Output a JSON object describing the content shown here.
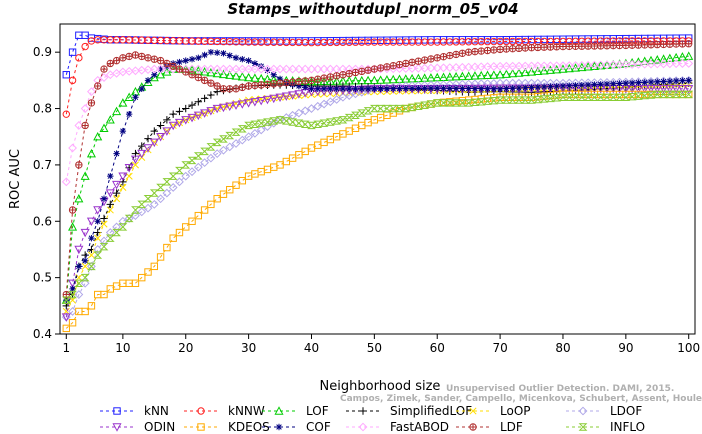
{
  "chart_data": {
    "type": "line",
    "title": "Stamps_withoutdupl_norm_05_v04",
    "xlabel": "Neighborhood size",
    "ylabel": "ROC AUC",
    "xlim": [
      0,
      101
    ],
    "ylim": [
      0.4,
      0.95
    ],
    "xticks": [
      1,
      10,
      20,
      30,
      40,
      50,
      60,
      70,
      80,
      90,
      100
    ],
    "yticks": [
      0.4,
      0.5,
      0.6,
      0.7,
      0.8,
      0.9
    ],
    "ytick_labels": [
      "0.4",
      "0.5",
      "0.6",
      "0.7",
      "0.8",
      "0.9"
    ],
    "grid": false,
    "legend_position": "bottom",
    "watermark_lines": [
      "Unsupervised Outlier Detection. DAMI, 2015.",
      "Campos, Zimek, Sander, Campello, Micenkova, Schubert, Assent, Houle"
    ],
    "series": [
      {
        "name": "kNN",
        "color": "#2020ff",
        "marker": "square",
        "points": [
          [
            1,
            0.86
          ],
          [
            2,
            0.9
          ],
          [
            3,
            0.93
          ],
          [
            4,
            0.93
          ],
          [
            5,
            0.925
          ],
          [
            6,
            0.924
          ],
          [
            8,
            0.922
          ],
          [
            10,
            0.922
          ],
          [
            15,
            0.921
          ],
          [
            20,
            0.92
          ],
          [
            30,
            0.92
          ],
          [
            40,
            0.92
          ],
          [
            50,
            0.921
          ],
          [
            60,
            0.922
          ],
          [
            70,
            0.922
          ],
          [
            80,
            0.923
          ],
          [
            90,
            0.924
          ],
          [
            100,
            0.925
          ]
        ]
      },
      {
        "name": "kNNW",
        "color": "#ff2020",
        "marker": "circle",
        "points": [
          [
            1,
            0.79
          ],
          [
            2,
            0.85
          ],
          [
            3,
            0.89
          ],
          [
            4,
            0.91
          ],
          [
            5,
            0.92
          ],
          [
            6,
            0.922
          ],
          [
            8,
            0.922
          ],
          [
            10,
            0.922
          ],
          [
            20,
            0.92
          ],
          [
            30,
            0.918
          ],
          [
            40,
            0.917
          ],
          [
            50,
            0.918
          ],
          [
            60,
            0.918
          ],
          [
            70,
            0.919
          ],
          [
            80,
            0.919
          ],
          [
            90,
            0.92
          ],
          [
            100,
            0.92
          ]
        ]
      },
      {
        "name": "LOF",
        "color": "#00cc00",
        "marker": "triangle-up",
        "points": [
          [
            1,
            0.46
          ],
          [
            2,
            0.59
          ],
          [
            3,
            0.64
          ],
          [
            4,
            0.68
          ],
          [
            5,
            0.72
          ],
          [
            6,
            0.75
          ],
          [
            8,
            0.78
          ],
          [
            10,
            0.81
          ],
          [
            12,
            0.83
          ],
          [
            15,
            0.855
          ],
          [
            18,
            0.87
          ],
          [
            20,
            0.87
          ],
          [
            25,
            0.862
          ],
          [
            30,
            0.855
          ],
          [
            35,
            0.85
          ],
          [
            40,
            0.848
          ],
          [
            50,
            0.85
          ],
          [
            60,
            0.855
          ],
          [
            70,
            0.86
          ],
          [
            80,
            0.87
          ],
          [
            90,
            0.88
          ],
          [
            100,
            0.893
          ]
        ]
      },
      {
        "name": "SimplifiedLOF",
        "color": "#000000",
        "marker": "plus",
        "points": [
          [
            1,
            0.45
          ],
          [
            2,
            0.47
          ],
          [
            3,
            0.52
          ],
          [
            4,
            0.54
          ],
          [
            5,
            0.55
          ],
          [
            6,
            0.58
          ],
          [
            8,
            0.63
          ],
          [
            10,
            0.67
          ],
          [
            12,
            0.72
          ],
          [
            15,
            0.76
          ],
          [
            18,
            0.79
          ],
          [
            20,
            0.8
          ],
          [
            25,
            0.83
          ],
          [
            30,
            0.84
          ],
          [
            35,
            0.842
          ],
          [
            40,
            0.84
          ],
          [
            45,
            0.84
          ],
          [
            50,
            0.838
          ],
          [
            55,
            0.835
          ],
          [
            60,
            0.832
          ],
          [
            65,
            0.829
          ],
          [
            70,
            0.83
          ],
          [
            75,
            0.829
          ],
          [
            80,
            0.831
          ],
          [
            85,
            0.834
          ],
          [
            90,
            0.838
          ],
          [
            95,
            0.842
          ],
          [
            100,
            0.845
          ]
        ]
      },
      {
        "name": "LoOP",
        "color": "#ffdd00",
        "marker": "x",
        "points": [
          [
            1,
            0.44
          ],
          [
            2,
            0.46
          ],
          [
            3,
            0.5
          ],
          [
            4,
            0.52
          ],
          [
            5,
            0.54
          ],
          [
            6,
            0.57
          ],
          [
            8,
            0.62
          ],
          [
            10,
            0.66
          ],
          [
            12,
            0.7
          ],
          [
            15,
            0.74
          ],
          [
            18,
            0.77
          ],
          [
            20,
            0.78
          ],
          [
            25,
            0.8
          ],
          [
            30,
            0.815
          ],
          [
            40,
            0.825
          ],
          [
            50,
            0.83
          ],
          [
            60,
            0.832
          ],
          [
            70,
            0.835
          ],
          [
            80,
            0.837
          ],
          [
            90,
            0.84
          ],
          [
            100,
            0.842
          ]
        ]
      },
      {
        "name": "LDOF",
        "color": "#b0a8e8",
        "marker": "diamond",
        "points": [
          [
            1,
            0.43
          ],
          [
            2,
            0.44
          ],
          [
            3,
            0.47
          ],
          [
            4,
            0.49
          ],
          [
            5,
            0.52
          ],
          [
            6,
            0.55
          ],
          [
            8,
            0.58
          ],
          [
            10,
            0.6
          ],
          [
            12,
            0.61
          ],
          [
            15,
            0.63
          ],
          [
            18,
            0.66
          ],
          [
            20,
            0.68
          ],
          [
            25,
            0.72
          ],
          [
            30,
            0.75
          ],
          [
            35,
            0.78
          ],
          [
            40,
            0.8
          ],
          [
            45,
            0.82
          ],
          [
            50,
            0.835
          ],
          [
            55,
            0.84
          ],
          [
            60,
            0.842
          ],
          [
            70,
            0.845
          ],
          [
            80,
            0.845
          ],
          [
            90,
            0.847
          ],
          [
            100,
            0.85
          ]
        ]
      },
      {
        "name": "ODIN",
        "color": "#9933cc",
        "marker": "triangle-down",
        "points": [
          [
            1,
            0.43
          ],
          [
            2,
            0.49
          ],
          [
            3,
            0.55
          ],
          [
            4,
            0.58
          ],
          [
            5,
            0.6
          ],
          [
            6,
            0.62
          ],
          [
            8,
            0.65
          ],
          [
            10,
            0.68
          ],
          [
            12,
            0.71
          ],
          [
            15,
            0.74
          ],
          [
            18,
            0.77
          ],
          [
            20,
            0.78
          ],
          [
            25,
            0.8
          ],
          [
            30,
            0.81
          ],
          [
            35,
            0.82
          ],
          [
            40,
            0.83
          ],
          [
            50,
            0.835
          ],
          [
            60,
            0.835
          ],
          [
            70,
            0.836
          ],
          [
            80,
            0.836
          ],
          [
            90,
            0.835
          ],
          [
            100,
            0.835
          ]
        ]
      },
      {
        "name": "KDEOS",
        "color": "#ffaa00",
        "marker": "square",
        "points": [
          [
            1,
            0.41
          ],
          [
            2,
            0.42
          ],
          [
            3,
            0.44
          ],
          [
            4,
            0.44
          ],
          [
            5,
            0.45
          ],
          [
            6,
            0.47
          ],
          [
            7,
            0.47
          ],
          [
            8,
            0.48
          ],
          [
            10,
            0.49
          ],
          [
            12,
            0.49
          ],
          [
            13,
            0.5
          ],
          [
            15,
            0.52
          ],
          [
            18,
            0.57
          ],
          [
            20,
            0.59
          ],
          [
            25,
            0.64
          ],
          [
            30,
            0.68
          ],
          [
            35,
            0.7
          ],
          [
            40,
            0.73
          ],
          [
            45,
            0.755
          ],
          [
            50,
            0.78
          ],
          [
            55,
            0.8
          ],
          [
            60,
            0.81
          ],
          [
            65,
            0.815
          ],
          [
            70,
            0.82
          ],
          [
            75,
            0.82
          ],
          [
            80,
            0.825
          ],
          [
            85,
            0.825
          ],
          [
            90,
            0.825
          ],
          [
            95,
            0.825
          ],
          [
            100,
            0.825
          ]
        ]
      },
      {
        "name": "COF",
        "color": "#000080",
        "marker": "asterisk",
        "points": [
          [
            1,
            0.46
          ],
          [
            2,
            0.48
          ],
          [
            3,
            0.52
          ],
          [
            4,
            0.53
          ],
          [
            5,
            0.57
          ],
          [
            6,
            0.6
          ],
          [
            8,
            0.68
          ],
          [
            10,
            0.76
          ],
          [
            12,
            0.82
          ],
          [
            14,
            0.85
          ],
          [
            16,
            0.87
          ],
          [
            18,
            0.88
          ],
          [
            20,
            0.885
          ],
          [
            22,
            0.89
          ],
          [
            24,
            0.9
          ],
          [
            26,
            0.898
          ],
          [
            28,
            0.89
          ],
          [
            30,
            0.885
          ],
          [
            32,
            0.875
          ],
          [
            34,
            0.86
          ],
          [
            36,
            0.845
          ],
          [
            38,
            0.84
          ],
          [
            40,
            0.835
          ],
          [
            45,
            0.835
          ],
          [
            50,
            0.835
          ],
          [
            60,
            0.836
          ],
          [
            70,
            0.835
          ],
          [
            80,
            0.84
          ],
          [
            90,
            0.845
          ],
          [
            100,
            0.85
          ]
        ]
      },
      {
        "name": "FastABOD",
        "color": "#ffaaff",
        "marker": "diamond",
        "points": [
          [
            1,
            0.67
          ],
          [
            2,
            0.73
          ],
          [
            3,
            0.77
          ],
          [
            4,
            0.8
          ],
          [
            5,
            0.83
          ],
          [
            6,
            0.85
          ],
          [
            8,
            0.86
          ],
          [
            10,
            0.865
          ],
          [
            15,
            0.87
          ],
          [
            20,
            0.87
          ],
          [
            30,
            0.87
          ],
          [
            40,
            0.87
          ],
          [
            50,
            0.87
          ],
          [
            60,
            0.872
          ],
          [
            70,
            0.875
          ],
          [
            80,
            0.876
          ],
          [
            90,
            0.878
          ],
          [
            100,
            0.88
          ]
        ]
      },
      {
        "name": "LDF",
        "color": "#b03030",
        "marker": "circle-plus",
        "points": [
          [
            1,
            0.47
          ],
          [
            2,
            0.62
          ],
          [
            3,
            0.7
          ],
          [
            4,
            0.77
          ],
          [
            5,
            0.81
          ],
          [
            6,
            0.84
          ],
          [
            7,
            0.87
          ],
          [
            8,
            0.88
          ],
          [
            10,
            0.89
          ],
          [
            12,
            0.895
          ],
          [
            14,
            0.89
          ],
          [
            16,
            0.885
          ],
          [
            18,
            0.875
          ],
          [
            20,
            0.865
          ],
          [
            22,
            0.855
          ],
          [
            24,
            0.845
          ],
          [
            26,
            0.835
          ],
          [
            28,
            0.835
          ],
          [
            30,
            0.84
          ],
          [
            35,
            0.845
          ],
          [
            40,
            0.85
          ],
          [
            45,
            0.86
          ],
          [
            50,
            0.87
          ],
          [
            55,
            0.88
          ],
          [
            60,
            0.89
          ],
          [
            65,
            0.9
          ],
          [
            70,
            0.905
          ],
          [
            75,
            0.908
          ],
          [
            80,
            0.91
          ],
          [
            90,
            0.912
          ],
          [
            100,
            0.915
          ]
        ]
      },
      {
        "name": "INFLO",
        "color": "#88cc33",
        "marker": "hourglass",
        "points": [
          [
            1,
            0.46
          ],
          [
            2,
            0.47
          ],
          [
            3,
            0.49
          ],
          [
            4,
            0.5
          ],
          [
            5,
            0.52
          ],
          [
            6,
            0.54
          ],
          [
            8,
            0.57
          ],
          [
            10,
            0.59
          ],
          [
            12,
            0.62
          ],
          [
            15,
            0.65
          ],
          [
            18,
            0.68
          ],
          [
            20,
            0.7
          ],
          [
            25,
            0.74
          ],
          [
            30,
            0.77
          ],
          [
            35,
            0.78
          ],
          [
            40,
            0.77
          ],
          [
            45,
            0.78
          ],
          [
            50,
            0.8
          ],
          [
            55,
            0.8
          ],
          [
            60,
            0.81
          ],
          [
            65,
            0.81
          ],
          [
            70,
            0.815
          ],
          [
            75,
            0.815
          ],
          [
            80,
            0.82
          ],
          [
            85,
            0.82
          ],
          [
            90,
            0.82
          ],
          [
            95,
            0.825
          ],
          [
            100,
            0.825
          ]
        ]
      }
    ],
    "legend_layout": [
      [
        "kNN",
        "kNNW",
        "LOF",
        "SimplifiedLOF",
        "LoOP",
        "LDOF"
      ],
      [
        "ODIN",
        "KDEOS",
        "COF",
        "FastABOD",
        "LDF",
        "INFLO"
      ]
    ]
  }
}
